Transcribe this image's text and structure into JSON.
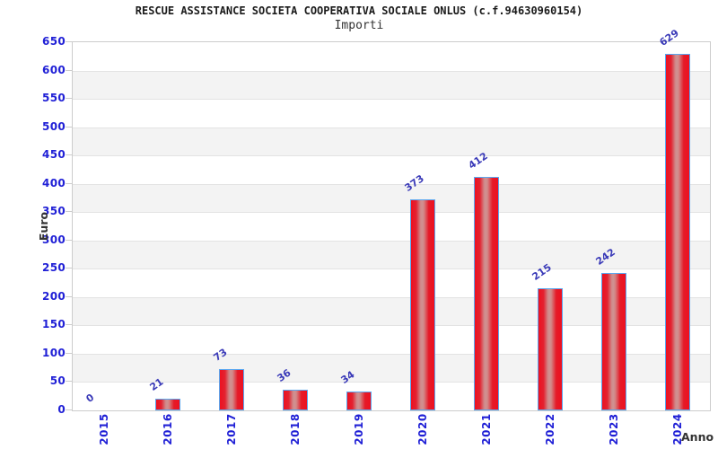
{
  "header": {
    "title": "RESCUE ASSISTANCE SOCIETA COOPERATIVA SOCIALE ONLUS (c.f.94630960154)",
    "subtitle": "Importi"
  },
  "axes": {
    "y_label": "Euro",
    "x_label": "Anno"
  },
  "chart_data": {
    "type": "bar",
    "title": "RESCUE ASSISTANCE SOCIETA COOPERATIVA SOCIALE ONLUS (c.f.94630960154)",
    "subtitle": "Importi",
    "xlabel": "Anno",
    "ylabel": "Euro",
    "categories": [
      "2015",
      "2016",
      "2017",
      "2018",
      "2019",
      "2020",
      "2021",
      "2022",
      "2023",
      "2024"
    ],
    "values": [
      0,
      21,
      73,
      36,
      34,
      373,
      412,
      215,
      242,
      629
    ],
    "ylim": [
      0,
      650
    ],
    "ytick_step": 50,
    "grid": true,
    "legend_position": "none",
    "band_fill": "alternating gray rows every 50 units",
    "colors": {
      "bar_fill_edge": "#ee1020",
      "bar_fill_highlight": "#cf9292",
      "bar_border": "#5aa7f0",
      "tick_label": "#2020d6",
      "value_label": "#3a3ab8",
      "band": "#f3f3f3",
      "gridline": "#e3e3e3",
      "plot_border": "#cccccc",
      "title": "#1a1a1a",
      "subtitle": "#333333",
      "axis_label": "#333333"
    }
  }
}
